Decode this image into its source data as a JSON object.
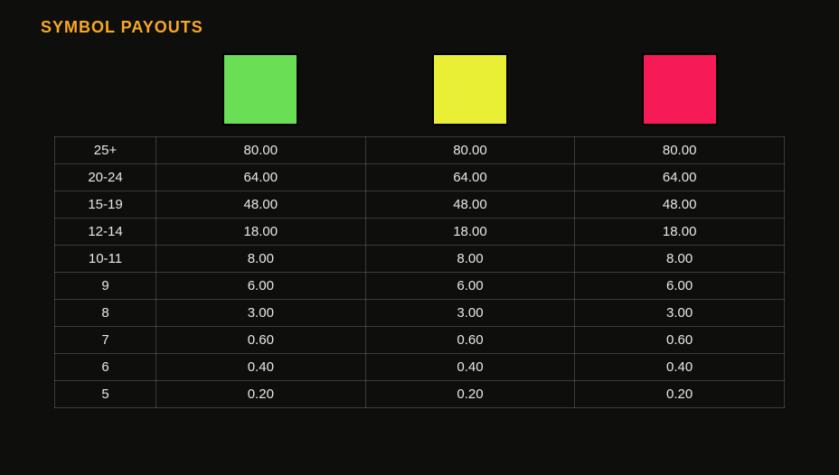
{
  "title": "SYMBOL PAYOUTS",
  "background_color": "#0e0e0c",
  "title_color": "#f9a825",
  "text_color": "#e8e8e8",
  "border_color": "rgba(255,255,255,0.18)",
  "symbols": [
    {
      "color": "#6ade55"
    },
    {
      "color": "#e8ef34"
    },
    {
      "color": "#f61a57"
    }
  ],
  "rows": [
    {
      "range": "25+",
      "values": [
        "80.00",
        "80.00",
        "80.00"
      ]
    },
    {
      "range": "20-24",
      "values": [
        "64.00",
        "64.00",
        "64.00"
      ]
    },
    {
      "range": "15-19",
      "values": [
        "48.00",
        "48.00",
        "48.00"
      ]
    },
    {
      "range": "12-14",
      "values": [
        "18.00",
        "18.00",
        "18.00"
      ]
    },
    {
      "range": "10-11",
      "values": [
        "8.00",
        "8.00",
        "8.00"
      ]
    },
    {
      "range": "9",
      "values": [
        "6.00",
        "6.00",
        "6.00"
      ]
    },
    {
      "range": "8",
      "values": [
        "3.00",
        "3.00",
        "3.00"
      ]
    },
    {
      "range": "7",
      "values": [
        "0.60",
        "0.60",
        "0.60"
      ]
    },
    {
      "range": "6",
      "values": [
        "0.40",
        "0.40",
        "0.40"
      ]
    },
    {
      "range": "5",
      "values": [
        "0.20",
        "0.20",
        "0.20"
      ]
    }
  ]
}
